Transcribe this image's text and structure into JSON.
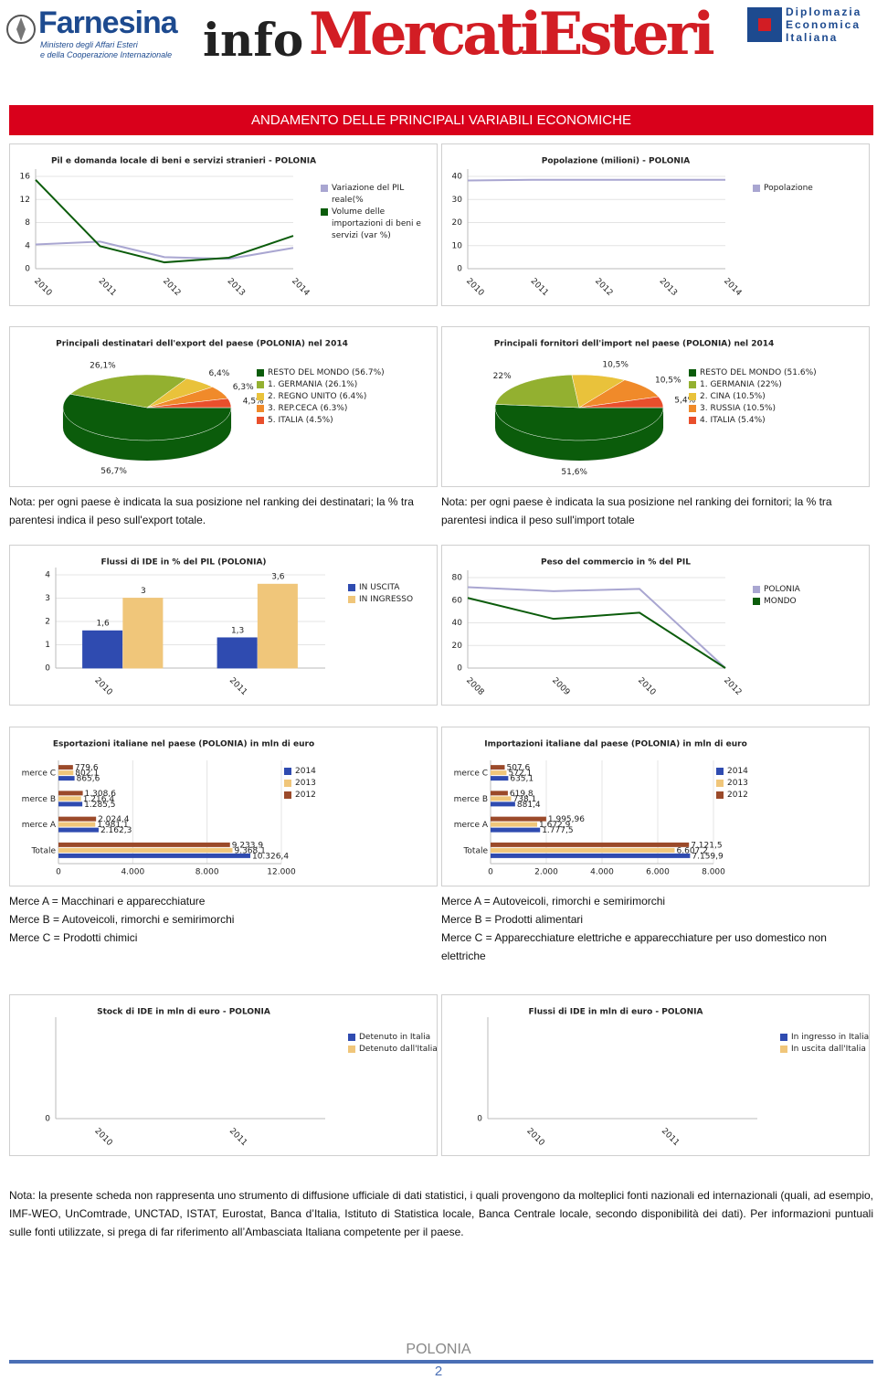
{
  "header": {
    "logo_left": "Farnesina",
    "logo_left_sub": [
      "Ministero degli Affari Esteri",
      "e della Cooperazione Internazionale"
    ],
    "brand_prefix": "info",
    "brand": "MercatiEsteri",
    "logo_right": [
      "Diplomazia",
      "Economica",
      "Italiana"
    ]
  },
  "banner": "ANDAMENTO DELLE PRINCIPALI VARIABILI ECONOMICHE",
  "chart_data": [
    {
      "type": "line",
      "title": "Pil e domanda locale di beni e servizi stranieri - POLONIA",
      "categories": [
        "2010",
        "2011",
        "2012",
        "2013",
        "2014"
      ],
      "series": [
        {
          "name": "Variazione del PIL reale(%",
          "color": "#a9a6d1",
          "values": [
            4.2,
            4.7,
            2.0,
            1.7,
            3.6
          ]
        },
        {
          "name": "Volume delle importazioni di beni e servizi (var %)",
          "color": "#0b5c0b",
          "values": [
            15.4,
            3.9,
            1.1,
            1.9,
            5.7
          ]
        }
      ],
      "ylim": [
        0,
        16
      ],
      "yticks": [
        0,
        4,
        8,
        12,
        16
      ],
      "grid": true
    },
    {
      "type": "line",
      "title": "Popolazione (milioni) - POLONIA",
      "categories": [
        "2010",
        "2011",
        "2012",
        "2013",
        "2014"
      ],
      "series": [
        {
          "name": "Popolazione",
          "color": "#a9a6d1",
          "values": [
            38.2,
            38.5,
            38.5,
            38.5,
            38.5
          ]
        }
      ],
      "ylim": [
        0,
        40
      ],
      "yticks": [
        0,
        10,
        20,
        30,
        40
      ],
      "grid": true
    },
    {
      "type": "pie",
      "title": "Principali destinatari dell'export del paese (POLONIA) nel 2014",
      "categories": [
        "RESTO DEL MONDO (56.7%)",
        "1. GERMANIA (26.1%)",
        "2. REGNO UNITO (6.4%)",
        "3. REP.CECA (6.3%)",
        "5. ITALIA (4.5%)"
      ],
      "values": [
        56.7,
        26.1,
        6.4,
        6.3,
        4.5
      ],
      "value_labels": [
        "56,7%",
        "26,1%",
        "6,4%",
        "6,3%",
        "4,5%"
      ],
      "colors": [
        "#0b5c0b",
        "#93b030",
        "#e9c23b",
        "#f08a2a",
        "#e94f2c"
      ]
    },
    {
      "type": "pie",
      "title": "Principali fornitori dell'import nel paese (POLONIA) nel 2014",
      "categories": [
        "RESTO DEL MONDO (51.6%)",
        "1. GERMANIA (22%)",
        "2. CINA (10.5%)",
        "3. RUSSIA (10.5%)",
        "4. ITALIA (5.4%)"
      ],
      "values": [
        51.6,
        22,
        10.5,
        10.5,
        5.4
      ],
      "value_labels": [
        "51,6%",
        "22%",
        "10,5%",
        "10,5%",
        "5,4%"
      ],
      "colors": [
        "#0b5c0b",
        "#93b030",
        "#e9c23b",
        "#f08a2a",
        "#e94f2c"
      ]
    },
    {
      "type": "bar",
      "title": "Flussi di IDE in % del PIL (POLONIA)",
      "categories": [
        "2010",
        "2011"
      ],
      "series": [
        {
          "name": "IN USCITA",
          "color": "#2f4bb0",
          "values": [
            1.6,
            1.3
          ],
          "value_labels": [
            "1,6",
            "1,3"
          ]
        },
        {
          "name": "IN INGRESSO",
          "color": "#f0c67a",
          "values": [
            3,
            3.6
          ],
          "value_labels": [
            "3",
            "3,6"
          ]
        }
      ],
      "ylim": [
        0,
        4
      ],
      "yticks": [
        0,
        1,
        2,
        3,
        4
      ],
      "grid": true
    },
    {
      "type": "line",
      "title": "Peso del commercio in % del PIL",
      "categories": [
        "2008",
        "2009",
        "2010",
        "2012"
      ],
      "series": [
        {
          "name": "POLONIA",
          "color": "#a9a6d1",
          "values": [
            71.5,
            68,
            70,
            0
          ]
        },
        {
          "name": "MONDO",
          "color": "#0b5c0b",
          "values": [
            62,
            43.5,
            49,
            0
          ]
        }
      ],
      "ylim": [
        0,
        80
      ],
      "yticks": [
        0,
        20,
        40,
        60,
        80
      ],
      "grid": true
    },
    {
      "type": "hbar",
      "title": "Esportazioni italiane nel paese (POLONIA) in mln di euro",
      "categories": [
        "merce C",
        "merce B",
        "merce A",
        "Totale"
      ],
      "series": [
        {
          "name": "2014",
          "color": "#2f4bb0",
          "values": [
            865.6,
            1285.5,
            2162.3,
            10326.4
          ],
          "value_labels": [
            "865,6",
            "1.285,5",
            "2.162,3",
            "10.326,4"
          ]
        },
        {
          "name": "2013",
          "color": "#f0c67a",
          "values": [
            802.1,
            1216.4,
            1981.1,
            9368.1
          ],
          "value_labels": [
            "802,1",
            "1.216,4",
            "1.981,1",
            "9.368,1"
          ]
        },
        {
          "name": "2012",
          "color": "#9b4a2a",
          "values": [
            779.6,
            1308.6,
            2024.4,
            9233.9
          ],
          "value_labels": [
            "779,6",
            "1.308,6",
            "2.024,4",
            "9.233,9"
          ]
        }
      ],
      "xlim": [
        0,
        12000
      ],
      "xticks": [
        0,
        {
          "value": 4000,
          "label": "4.000"
        },
        {
          "value": 8000,
          "label": "8.000"
        },
        {
          "value": 12000,
          "label": "12.000"
        }
      ],
      "grid": true
    },
    {
      "type": "hbar",
      "title": "Importazioni italiane dal paese (POLONIA) in mln di euro",
      "categories": [
        "merce C",
        "merce B",
        "merce A",
        "Totale"
      ],
      "series": [
        {
          "name": "2014",
          "color": "#2f4bb0",
          "values": [
            635.1,
            881.4,
            1777.5,
            7159.9
          ],
          "value_labels": [
            "635,1",
            "881,4",
            "1.777,5",
            "7.159,9"
          ]
        },
        {
          "name": "2013",
          "color": "#f0c67a",
          "values": [
            572.1,
            738.1,
            1672.9,
            6607.2
          ],
          "value_labels": [
            "572,1",
            "738,1",
            "1.672,9",
            "6.607,2"
          ]
        },
        {
          "name": "2012",
          "color": "#9b4a2a",
          "values": [
            507.6,
            619.8,
            1995.96,
            7121.5
          ],
          "value_labels": [
            "507,6",
            "619,8",
            "1.995,96",
            "7.121,5"
          ]
        }
      ],
      "xlim": [
        0,
        8000
      ],
      "xticks": [
        0,
        {
          "value": 2000,
          "label": "2.000"
        },
        {
          "value": 4000,
          "label": "4.000"
        },
        {
          "value": 6000,
          "label": "6.000"
        },
        {
          "value": 8000,
          "label": "8.000"
        }
      ],
      "grid": true
    },
    {
      "type": "bar",
      "title": "Stock di IDE in mln di euro - POLONIA",
      "categories": [
        "2010",
        "2011"
      ],
      "series": [
        {
          "name": "Detenuto in Italia",
          "color": "#2f4bb0",
          "values": [
            0,
            0
          ]
        },
        {
          "name": "Detenuto dall'Italia",
          "color": "#f0c67a",
          "values": [
            0,
            0
          ]
        }
      ],
      "ylim": [
        0,
        1
      ],
      "yticks": [
        0
      ],
      "grid": true
    },
    {
      "type": "bar",
      "title": "Flussi di IDE in mln di euro - POLONIA",
      "categories": [
        "2010",
        "2011"
      ],
      "series": [
        {
          "name": "In ingresso in Italia",
          "color": "#2f4bb0",
          "values": [
            0,
            0
          ]
        },
        {
          "name": "In uscita dall'Italia",
          "color": "#f0c67a",
          "values": [
            0,
            0
          ]
        }
      ],
      "ylim": [
        0,
        1
      ],
      "yticks": [
        0
      ],
      "grid": true
    }
  ],
  "notes": {
    "pies_left": "Nota: per ogni paese è indicata la sua posizione nel ranking dei destinatari; la % tra parentesi indica il peso sull'export totale.",
    "pies_right": "Nota: per ogni paese è indicata la sua posizione nel ranking dei fornitori; la % tra parentesi indica il peso sull'import totale",
    "goods_left": [
      "Merce A = Macchinari e apparecchiature",
      "Merce B = Autoveicoli, rimorchi e semirimorchi",
      "Merce C = Prodotti chimici"
    ],
    "goods_right": [
      "Merce A = Autoveicoli, rimorchi e semirimorchi",
      "Merce B = Prodotti alimentari",
      "Merce C = Apparecchiature elettriche e apparecchiature per uso domestico non elettriche"
    ],
    "disclaimer": "Nota: la presente scheda non rappresenta uno strumento di diffusione ufficiale di dati statistici, i quali provengono da molteplici fonti nazionali ed internazionali (quali, ad esempio, IMF-WEO, UnComtrade, UNCTAD, ISTAT, Eurostat, Banca d’Italia, Istituto di Statistica locale, Banca Centrale locale, secondo disponibilità dei dati). Per informazioni puntuali sulle fonti utilizzate, si prega di far riferimento all’Ambasciata Italiana competente per il paese."
  },
  "footer": {
    "country": "POLONIA",
    "page": "2"
  }
}
